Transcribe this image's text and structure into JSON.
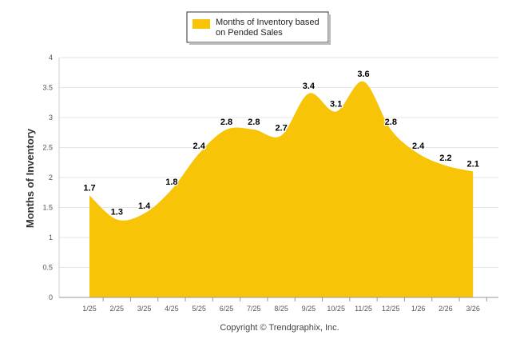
{
  "chart_data": {
    "type": "area",
    "title": "",
    "legend": {
      "entries": [
        "Months of Inventory based on Pended Sales"
      ],
      "lines": [
        "Months of Inventory based",
        "on Pended Sales"
      ],
      "position": "top-center"
    },
    "ylabel": "Months of Inventory",
    "xlabel": "",
    "categories": [
      "1/25",
      "2/25",
      "3/25",
      "4/25",
      "5/25",
      "6/25",
      "7/25",
      "8/25",
      "9/25",
      "10/25",
      "11/25",
      "12/25",
      "1/26",
      "2/26",
      "3/26"
    ],
    "series": [
      {
        "name": "Months of Inventory based on Pended Sales",
        "values": [
          1.7,
          1.3,
          1.4,
          1.8,
          2.4,
          2.8,
          2.8,
          2.7,
          3.4,
          3.1,
          3.6,
          2.8,
          2.4,
          2.2,
          2.1
        ],
        "color": "#F7C408"
      }
    ],
    "ylim": [
      0,
      4
    ],
    "yticks": [
      "0",
      "0.5",
      "1",
      "1.5",
      "2",
      "2.5",
      "3",
      "3.5",
      "4"
    ],
    "grid": true,
    "data_labels": true,
    "footer": "Copyright © Trendgraphix, Inc."
  },
  "colors": {
    "area": "#F7C408",
    "grid": "#e6e6e6",
    "axis_text": "#555555",
    "label_text": "#000000"
  }
}
